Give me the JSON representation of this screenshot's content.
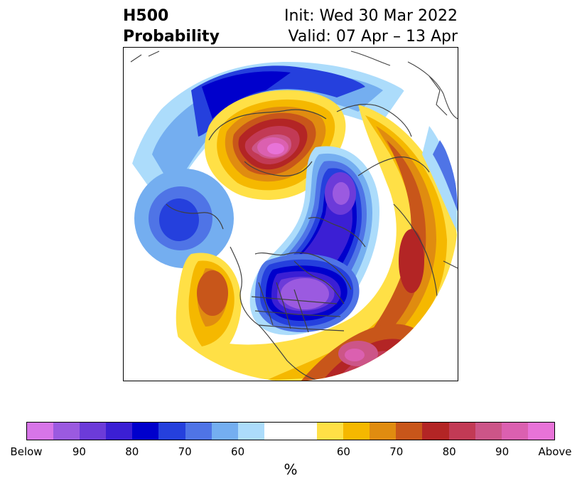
{
  "header": {
    "left_line1": "H500",
    "left_line2": "Probability",
    "right_line1": "Init: Wed 30 Mar 2022",
    "right_line2": "Valid: 07 Apr – 13 Apr"
  },
  "colorbar": {
    "colors": [
      "#d775e8",
      "#9b5ae0",
      "#6c3bd9",
      "#3b1fd4",
      "#0000cc",
      "#2540dd",
      "#4f74e6",
      "#74aef0",
      "#acdcfb",
      "#ffffff",
      "#ffffff",
      "#ffe046",
      "#f5b800",
      "#e08c10",
      "#c8561a",
      "#b32525",
      "#c23a55",
      "#cc5588",
      "#db60b0",
      "#e873d8"
    ],
    "tick_labels": [
      "Below",
      "90",
      "80",
      "70",
      "60",
      "60",
      "70",
      "80",
      "90",
      "Above"
    ],
    "unit": "%"
  },
  "map": {
    "palette": {
      "below_90": "#9b5ae0",
      "below_80": "#3b1fd4",
      "below_70": "#0000cc",
      "below_65": "#2540dd",
      "below_60": "#4f74e6",
      "below_55": "#74aef0",
      "below_50": "#acdcfb",
      "above_50": "#ffe046",
      "above_55": "#f5b800",
      "above_60": "#e08c10",
      "above_65": "#c8561a",
      "above_70": "#b32525",
      "above_75": "#c23a55",
      "above_80": "#cc5588",
      "above_85": "#db60b0",
      "above_90": "#e873d8"
    },
    "coast_color": "#404040"
  }
}
